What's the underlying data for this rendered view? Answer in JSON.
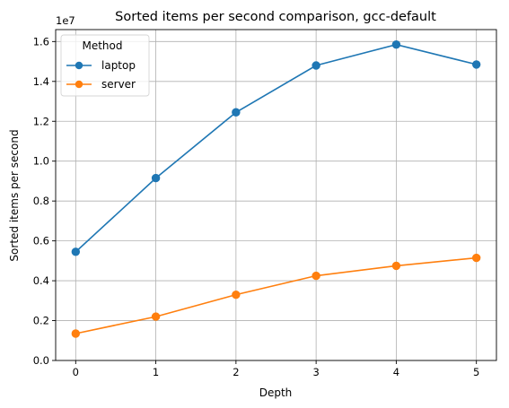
{
  "chart_data": {
    "type": "line",
    "title": "Sorted items per second comparison, gcc-default",
    "xlabel": "Depth",
    "ylabel": "Sorted items per second",
    "y_offset_label": "1e7",
    "x": [
      0,
      1,
      2,
      3,
      4,
      5
    ],
    "xticks": [
      "0",
      "1",
      "2",
      "3",
      "4",
      "5"
    ],
    "xlim": [
      -0.25,
      5.25
    ],
    "yticks": [
      "0.0",
      "0.2",
      "0.4",
      "0.6",
      "0.8",
      "1.0",
      "1.2",
      "1.4",
      "1.6"
    ],
    "ytick_values": [
      0,
      2000000,
      4000000,
      6000000,
      8000000,
      10000000,
      12000000,
      14000000,
      16000000
    ],
    "ylim": [
      0,
      16600000
    ],
    "grid": true,
    "legend": {
      "title": "Method",
      "placement": "top-left"
    },
    "series": [
      {
        "name": "laptop",
        "color": "#1f77b4",
        "marker": "circle",
        "values": [
          5450000,
          9150000,
          12450000,
          14800000,
          15850000,
          14850000
        ]
      },
      {
        "name": "server",
        "color": "#ff7f0e",
        "marker": "circle",
        "values": [
          1350000,
          2200000,
          3300000,
          4250000,
          4750000,
          5150000
        ]
      }
    ]
  }
}
